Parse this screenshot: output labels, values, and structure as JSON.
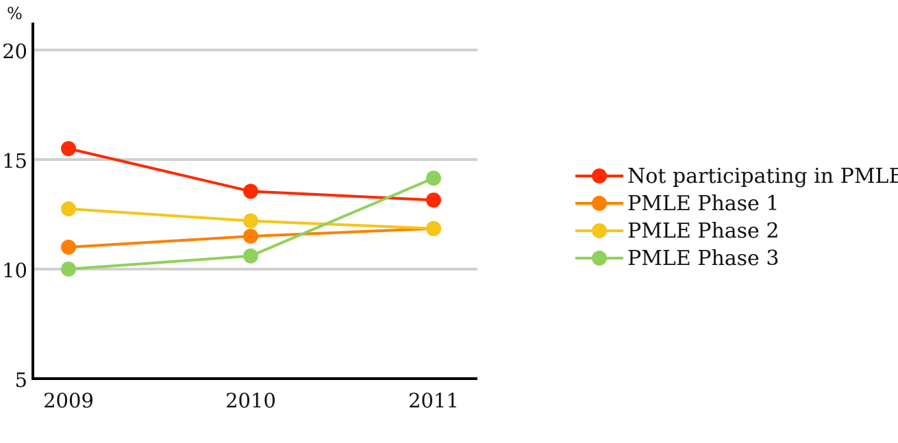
{
  "chart_data": {
    "type": "line",
    "title": "",
    "xlabel": "",
    "ylabel": "%",
    "categories": [
      "2009",
      "2010",
      "2011"
    ],
    "ylim": [
      5,
      20
    ],
    "yticks": [
      5,
      10,
      15,
      20
    ],
    "grid": true,
    "legend_position": "right",
    "series": [
      {
        "name": "Not participating in PMLE",
        "color": "#ff2a00",
        "values": [
          15.5,
          13.55,
          13.15
        ]
      },
      {
        "name": "PMLE Phase 1",
        "color": "#ff7f00",
        "values": [
          11.0,
          11.5,
          11.85
        ]
      },
      {
        "name": "PMLE Phase 2",
        "color": "#f5c518",
        "values": [
          12.75,
          12.2,
          11.85
        ]
      },
      {
        "name": "PMLE Phase 3",
        "color": "#8fd15c",
        "values": [
          10.0,
          10.6,
          14.15
        ]
      }
    ]
  }
}
